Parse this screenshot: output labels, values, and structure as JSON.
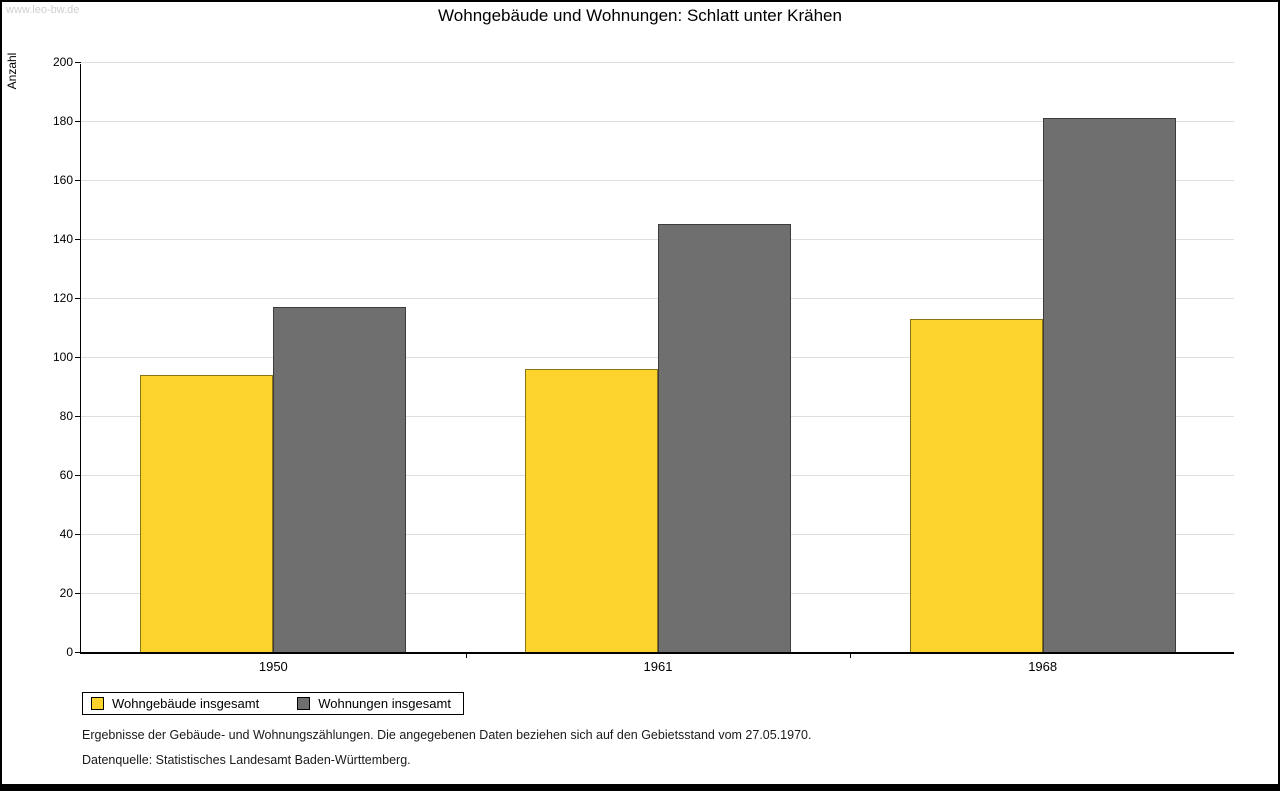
{
  "watermark": "www.leo-bw.de",
  "title": "Wohngebäude und Wohnungen: Schlatt unter Krähen",
  "chart_data": {
    "type": "bar",
    "categories": [
      "1950",
      "1961",
      "1968"
    ],
    "series": [
      {
        "name": "Wohngebäude insgesamt",
        "color": "#fbd32c",
        "values": [
          94,
          96,
          113
        ]
      },
      {
        "name": "Wohnungen insgesamt",
        "color": "#6f6f6f",
        "values": [
          117,
          145,
          181
        ]
      }
    ],
    "title": "Wohngebäude und Wohnungen: Schlatt unter Krähen",
    "xlabel": "",
    "ylabel": "Anzahl",
    "ylim": [
      0,
      200
    ],
    "ytick_step": 20,
    "grid": true,
    "legend_position": "bottom-left"
  },
  "footnotes": {
    "line1": "Ergebnisse der Gebäude- und Wohnungszählungen. Die angegebenen Daten beziehen sich auf den Gebietsstand vom 27.05.1970.",
    "line2": "Datenquelle: Statistisches Landesamt Baden-Württemberg."
  }
}
